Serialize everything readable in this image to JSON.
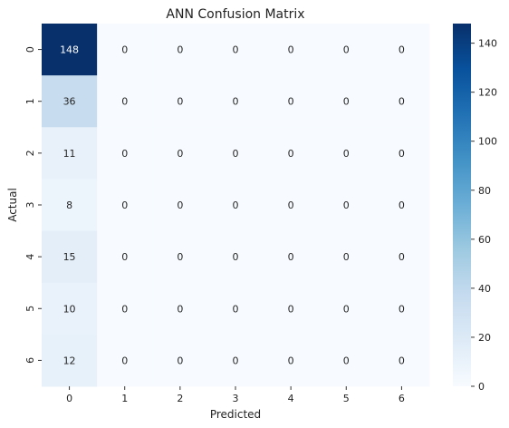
{
  "chart_data": {
    "type": "heatmap",
    "title": "ANN Confusion Matrix",
    "xlabel": "Predicted",
    "ylabel": "Actual",
    "x_categories": [
      "0",
      "1",
      "2",
      "3",
      "4",
      "5",
      "6"
    ],
    "y_categories": [
      "0",
      "1",
      "2",
      "3",
      "4",
      "5",
      "6"
    ],
    "values": [
      [
        148,
        0,
        0,
        0,
        0,
        0,
        0
      ],
      [
        36,
        0,
        0,
        0,
        0,
        0,
        0
      ],
      [
        11,
        0,
        0,
        0,
        0,
        0,
        0
      ],
      [
        8,
        0,
        0,
        0,
        0,
        0,
        0
      ],
      [
        15,
        0,
        0,
        0,
        0,
        0,
        0
      ],
      [
        10,
        0,
        0,
        0,
        0,
        0,
        0
      ],
      [
        12,
        0,
        0,
        0,
        0,
        0,
        0
      ]
    ],
    "colorbar": {
      "min": 0,
      "max": 148,
      "ticks": [
        0,
        20,
        40,
        60,
        80,
        100,
        120,
        140
      ]
    },
    "colormap": [
      "#f7fbff",
      "#deebf7",
      "#c6dbef",
      "#9ecae1",
      "#6baed6",
      "#4292c6",
      "#2171b5",
      "#08519c",
      "#08306b"
    ],
    "grid": false
  }
}
